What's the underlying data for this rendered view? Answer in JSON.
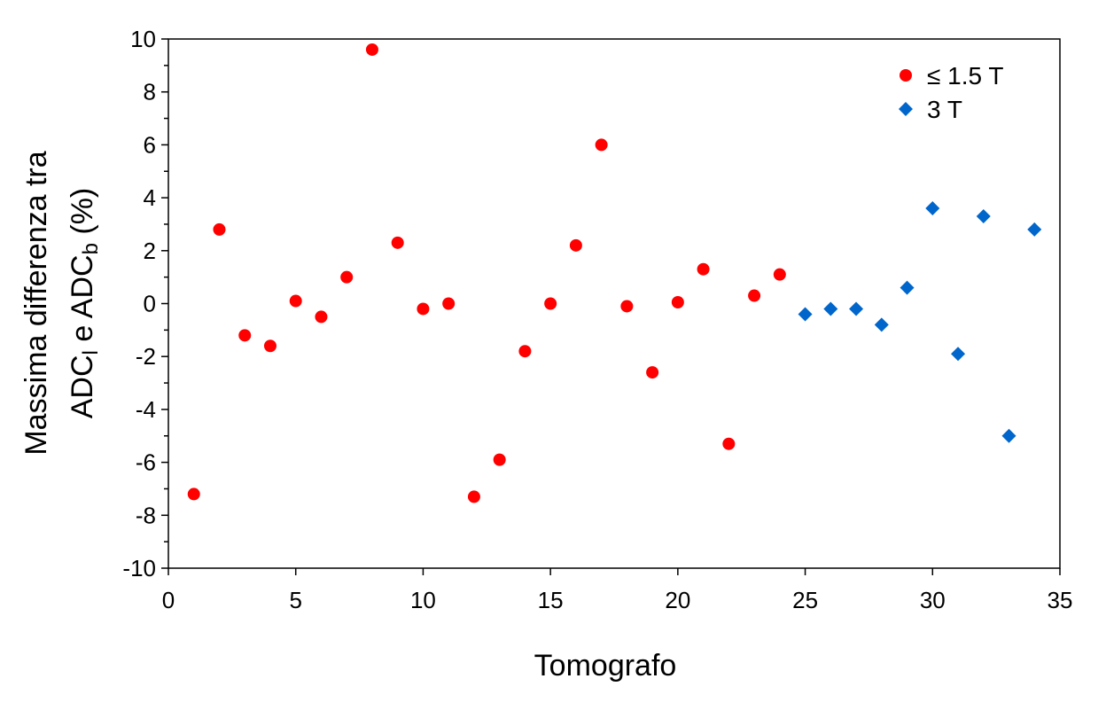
{
  "chart_data": {
    "type": "scatter",
    "x_label": "Tomografo",
    "y_label_lines": [
      "Massima differenza tra",
      [
        "ADC",
        "l",
        " e ADC",
        "b",
        " (%)"
      ]
    ],
    "xlim": [
      0,
      35
    ],
    "xticks": [
      0,
      5,
      10,
      15,
      20,
      25,
      30,
      35
    ],
    "ylim": [
      -10,
      10
    ],
    "yticks": [
      -10,
      -8,
      -6,
      -4,
      -2,
      0,
      2,
      4,
      6,
      8,
      10
    ],
    "yticks_minor": [
      -9,
      -7,
      -5,
      -3,
      -1,
      1,
      3,
      5,
      7,
      9
    ],
    "grid": false,
    "legend": "upper right",
    "series": [
      {
        "name": "≤ 1.5 T",
        "color": "#ff0000",
        "marker": "circle",
        "x": [
          1,
          2,
          3,
          4,
          5,
          6,
          7,
          8,
          9,
          10,
          11,
          12,
          13,
          14,
          15,
          16,
          17,
          18,
          19,
          20,
          21,
          22,
          23,
          24
        ],
        "values": [
          -7.2,
          2.8,
          -1.2,
          -1.6,
          0.1,
          -0.5,
          1.0,
          9.6,
          2.3,
          -0.2,
          0,
          -7.3,
          -5.9,
          -1.8,
          0,
          2.2,
          6.0,
          -0.1,
          -2.6,
          0.05,
          1.3,
          -5.3,
          0.3,
          1.1
        ]
      },
      {
        "name": "3 T",
        "color": "#0066cc",
        "marker": "diamond",
        "x": [
          25,
          26,
          27,
          28,
          29,
          30,
          31,
          32,
          33,
          34
        ],
        "values": [
          -0.4,
          -0.2,
          -0.2,
          -0.8,
          0.6,
          3.6,
          -1.9,
          3.3,
          -5.0,
          2.8
        ]
      }
    ]
  }
}
